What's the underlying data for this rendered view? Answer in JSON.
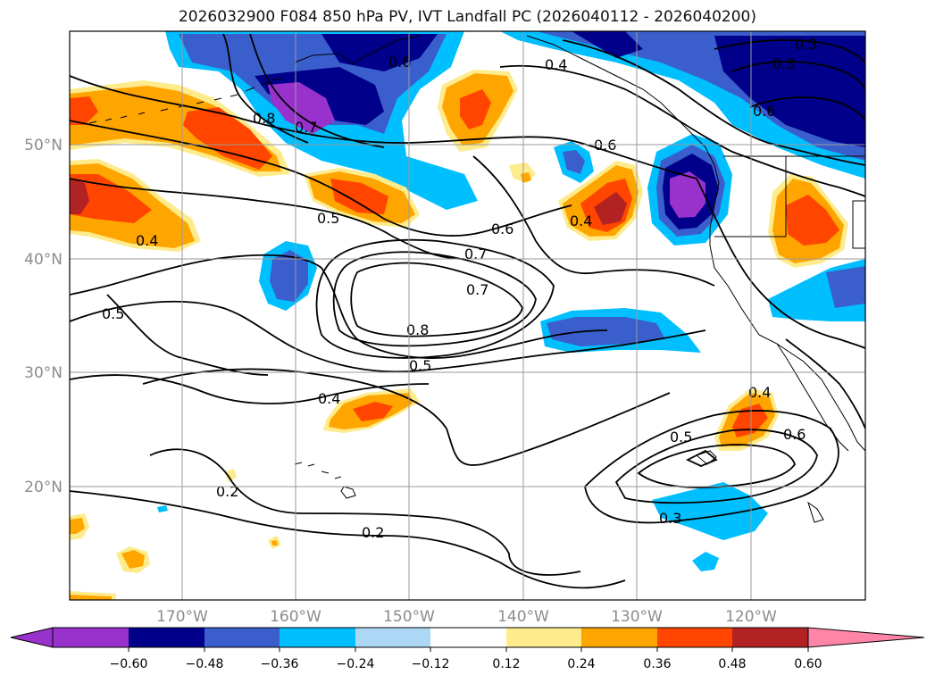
{
  "figure": {
    "title": "2026032900 F084 850 hPa PV, IVT Landfall PC (2026040112 - 2026040200)"
  },
  "map": {
    "lat_ticks": [
      "50°N",
      "40°N",
      "30°N",
      "20°N"
    ],
    "lon_ticks": [
      "170°W",
      "160°W",
      "150°W",
      "140°W",
      "130°W",
      "120°W"
    ],
    "contour_labels": [
      "0.6",
      "0.4",
      "0.3",
      "0.3",
      "0.8",
      "0.7",
      "0.6",
      "0.6",
      "0.5",
      "0.6",
      "0.7",
      "0.4",
      "0.4",
      "0.5",
      "0.7",
      "0.8",
      "0.5",
      "0.4",
      "0.4",
      "0.5",
      "0.6",
      "0.2",
      "0.3",
      "0.2"
    ]
  },
  "colorbar": {
    "tick_labels": [
      "−0.60",
      "−0.48",
      "−0.36",
      "−0.24",
      "−0.12",
      "0.12",
      "0.24",
      "0.36",
      "0.48",
      "0.60"
    ],
    "colors": [
      "#9932cc",
      "#00008b",
      "#3a5fcd",
      "#00bfff",
      "#add8f5",
      "#ffffff",
      "#fdeb8c",
      "#ffa500",
      "#ff4500",
      "#b22222",
      "#ff85a8"
    ]
  }
}
